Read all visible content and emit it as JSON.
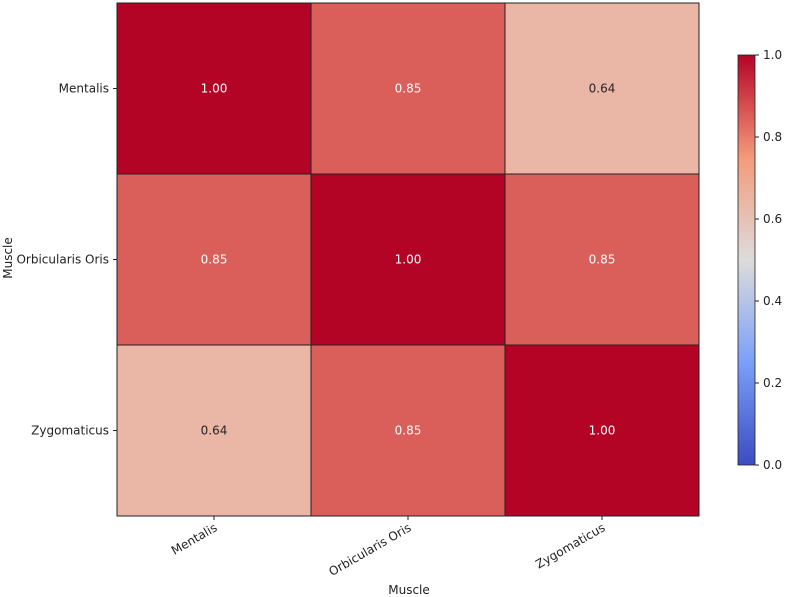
{
  "chart_data": {
    "type": "heatmap",
    "title": "",
    "xlabel": "Muscle",
    "ylabel": "Muscle",
    "x_categories": [
      "Mentalis",
      "Orbicularis Oris",
      "Zygomaticus"
    ],
    "y_categories": [
      "Mentalis",
      "Orbicularis Oris",
      "Zygomaticus"
    ],
    "values": [
      [
        1.0,
        0.85,
        0.64
      ],
      [
        0.85,
        1.0,
        0.85
      ],
      [
        0.64,
        0.85,
        1.0
      ]
    ],
    "value_labels": [
      [
        "1.00",
        "0.85",
        "0.64"
      ],
      [
        "0.85",
        "1.00",
        "0.85"
      ],
      [
        "0.64",
        "0.85",
        "1.00"
      ]
    ],
    "colormap": "coolwarm",
    "vmin": 0.0,
    "vmax": 1.0,
    "colorbar_ticks": [
      "0.0",
      "0.2",
      "0.4",
      "0.6",
      "0.8",
      "1.0"
    ],
    "colorbar_placement": "right",
    "x_tick_rotation_deg": 30
  }
}
